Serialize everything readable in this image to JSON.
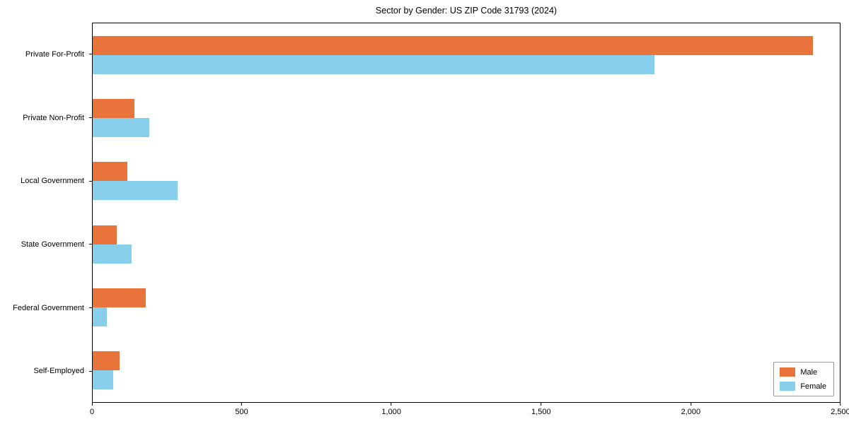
{
  "title": "Sector by Gender: US ZIP Code 31793 (2024)",
  "chart_data": {
    "type": "bar",
    "orientation": "horizontal",
    "title": "Sector by Gender: US ZIP Code 31793 (2024)",
    "categories": [
      "Private For-Profit",
      "Private Non-Profit",
      "Local Government",
      "State Government",
      "Federal Government",
      "Self-Employed"
    ],
    "series": [
      {
        "name": "Male",
        "color": "#e8743b",
        "values": [
          2410,
          140,
          115,
          80,
          178,
          90
        ]
      },
      {
        "name": "Female",
        "color": "#87ceeb",
        "values": [
          1880,
          190,
          285,
          130,
          48,
          68
        ]
      }
    ],
    "xlim": [
      0,
      2500
    ],
    "xticks": [
      {
        "value": 0,
        "label": "0"
      },
      {
        "value": 500,
        "label": "500"
      },
      {
        "value": 1000,
        "label": "1,000"
      },
      {
        "value": 1500,
        "label": "1,500"
      },
      {
        "value": 2000,
        "label": "2,000"
      },
      {
        "value": 2500,
        "label": "2,500"
      }
    ],
    "xlabel": "",
    "ylabel": "",
    "grid": false,
    "legend": {
      "position": "lower right",
      "entries": [
        "Male",
        "Female"
      ]
    }
  }
}
